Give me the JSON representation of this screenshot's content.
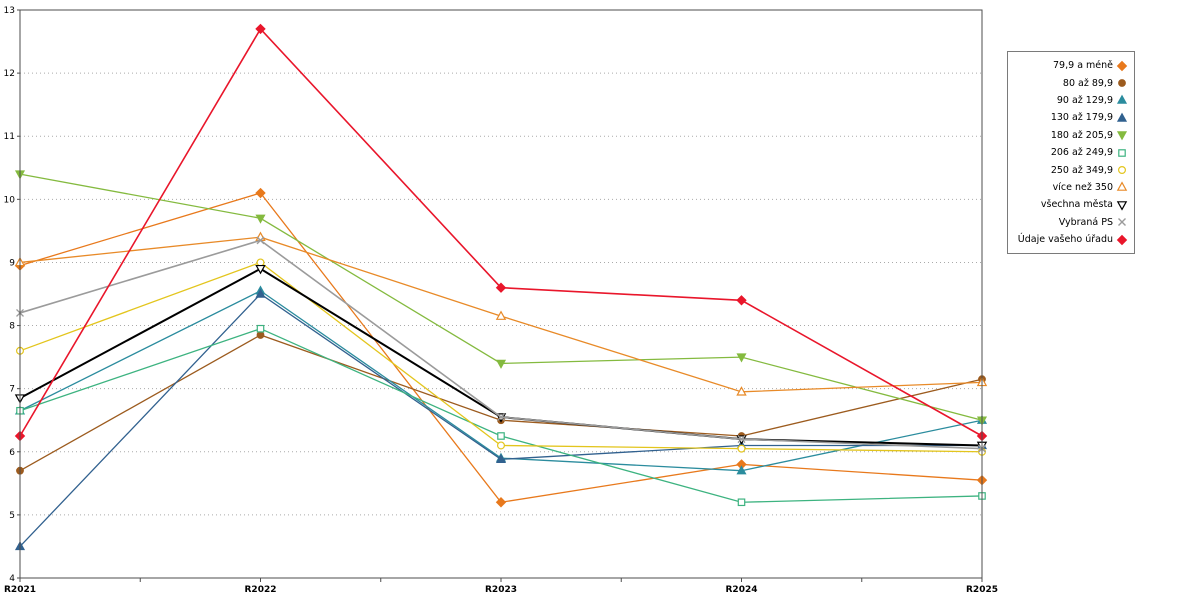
{
  "chart_data": {
    "type": "line",
    "title": "",
    "xlabel": "",
    "ylabel": "",
    "categories": [
      "R2021",
      "R2022",
      "R2023",
      "R2024",
      "R2025"
    ],
    "ylim": [
      4,
      13
    ],
    "y_ticks": [
      4,
      5,
      6,
      7,
      8,
      9,
      10,
      11,
      12,
      13
    ],
    "grid": "horizontal-dotted",
    "legend_position": "right",
    "series": [
      {
        "name": "79,9 a méně",
        "color": "#E8791C",
        "marker": "diamond",
        "filled": true,
        "line_width": 1.3,
        "values": [
          8.95,
          10.1,
          5.2,
          5.8,
          5.55
        ]
      },
      {
        "name": "80 až 89,9",
        "color": "#9C5B1E",
        "marker": "circle",
        "filled": true,
        "line_width": 1.3,
        "values": [
          5.7,
          7.85,
          6.5,
          6.25,
          7.15
        ]
      },
      {
        "name": "90 až 129,9",
        "color": "#2B8C9E",
        "marker": "triangle-up",
        "filled": true,
        "line_width": 1.3,
        "values": [
          6.65,
          8.55,
          5.9,
          5.7,
          6.5
        ]
      },
      {
        "name": "130 až 179,9",
        "color": "#31618F",
        "marker": "triangle-up",
        "filled": true,
        "line_width": 1.3,
        "values": [
          4.5,
          8.5,
          5.88,
          6.1,
          6.1
        ]
      },
      {
        "name": "180 až 205,9",
        "color": "#84BA3F",
        "marker": "triangle-down",
        "filled": true,
        "line_width": 1.3,
        "values": [
          10.4,
          9.7,
          7.4,
          7.5,
          6.5
        ]
      },
      {
        "name": "206 až 249,9",
        "color": "#3DB380",
        "marker": "square",
        "filled": false,
        "line_width": 1.3,
        "values": [
          6.65,
          7.95,
          6.25,
          5.2,
          5.3
        ]
      },
      {
        "name": "250 až 349,9",
        "color": "#E3C51D",
        "marker": "circle",
        "filled": false,
        "line_width": 1.3,
        "values": [
          7.6,
          9.0,
          6.1,
          6.05,
          6.0
        ]
      },
      {
        "name": "více než 350",
        "color": "#E88A28",
        "marker": "triangle-up",
        "filled": false,
        "line_width": 1.3,
        "values": [
          9.0,
          9.4,
          8.15,
          6.95,
          7.1
        ]
      },
      {
        "name": "všechna města",
        "color": "#000000",
        "marker": "triangle-down",
        "filled": false,
        "line_width": 2.0,
        "values": [
          6.85,
          8.9,
          6.55,
          6.2,
          6.1
        ]
      },
      {
        "name": "Vybraná PS",
        "color": "#9B9B9B",
        "marker": "x",
        "filled": false,
        "line_width": 1.6,
        "values": [
          8.2,
          9.35,
          6.55,
          6.2,
          6.05
        ]
      },
      {
        "name": "Údaje vašeho úřadu",
        "color": "#E9162B",
        "marker": "diamond",
        "filled": true,
        "line_width": 1.6,
        "values": [
          6.25,
          12.7,
          8.6,
          8.4,
          6.25
        ]
      }
    ]
  },
  "colors": {
    "background": "#FFFFFF",
    "grid": "#AAAAAA",
    "plot_border": "#4D4D4D",
    "axis_text": "#000000",
    "legend_border": "#7A7A7A"
  }
}
